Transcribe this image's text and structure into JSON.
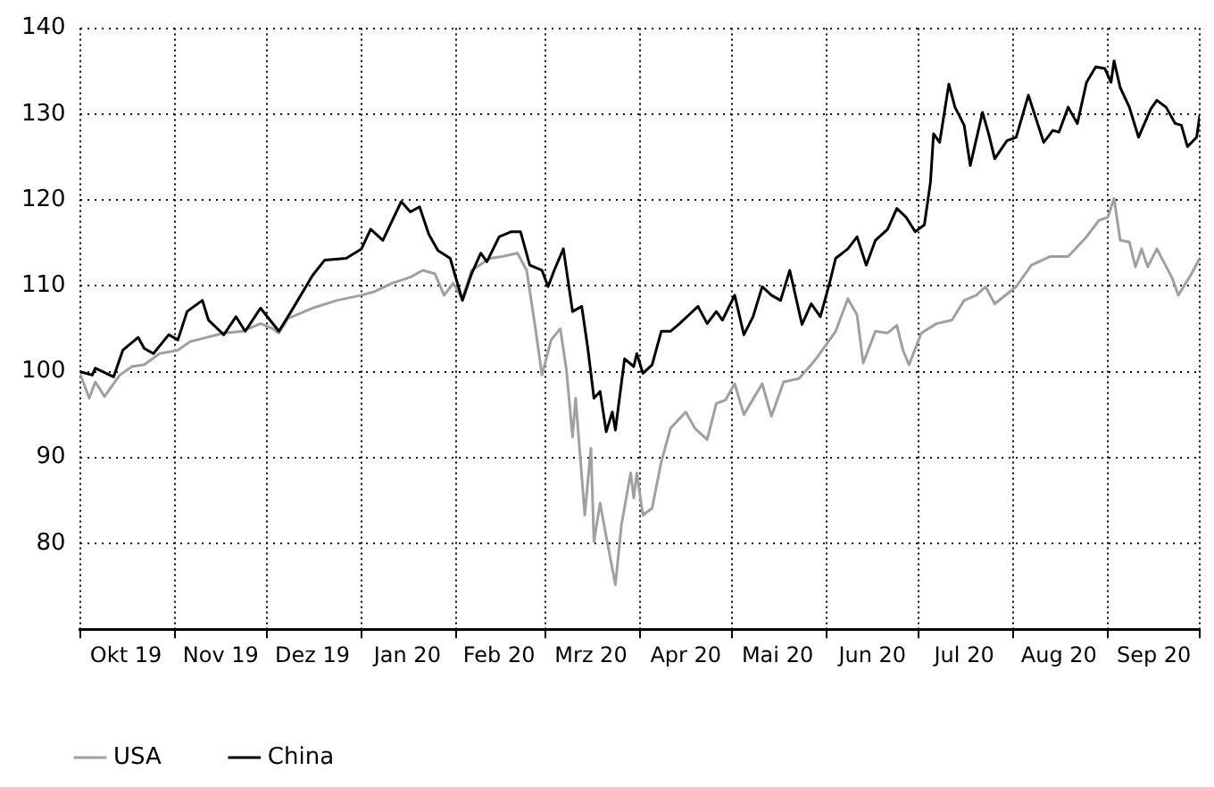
{
  "chart_data": {
    "type": "line",
    "xlim": [
      "2019-10-01",
      "2020-10-01"
    ],
    "xticks": [
      {
        "value": "2019-10-01",
        "label": null
      },
      {
        "value": "2019-10-16",
        "label": "Okt 19"
      },
      {
        "value": "2019-11-01",
        "label": null
      },
      {
        "value": "2019-11-16",
        "label": "Nov 19"
      },
      {
        "value": "2019-12-01",
        "label": null
      },
      {
        "value": "2019-12-16",
        "label": "Dez 19"
      },
      {
        "value": "2020-01-01",
        "label": null
      },
      {
        "value": "2020-01-16",
        "label": "Jan 20"
      },
      {
        "value": "2020-02-01",
        "label": null
      },
      {
        "value": "2020-02-15",
        "label": "Feb 20"
      },
      {
        "value": "2020-03-01",
        "label": null
      },
      {
        "value": "2020-03-16",
        "label": "Mrz 20"
      },
      {
        "value": "2020-04-01",
        "label": null
      },
      {
        "value": "2020-04-16",
        "label": "Apr 20"
      },
      {
        "value": "2020-05-01",
        "label": null
      },
      {
        "value": "2020-05-16",
        "label": "Mai 20"
      },
      {
        "value": "2020-06-01",
        "label": null
      },
      {
        "value": "2020-06-16",
        "label": "Jun 20"
      },
      {
        "value": "2020-07-01",
        "label": null
      },
      {
        "value": "2020-07-16",
        "label": "Jul 20"
      },
      {
        "value": "2020-08-01",
        "label": null
      },
      {
        "value": "2020-08-16",
        "label": "Aug 20"
      },
      {
        "value": "2020-09-01",
        "label": null
      },
      {
        "value": "2020-09-16",
        "label": "Sep 20"
      },
      {
        "value": "2020-10-01",
        "label": null
      }
    ],
    "ylim": [
      70,
      140
    ],
    "yticks": [
      {
        "value": 70,
        "label": null
      },
      80,
      90,
      100,
      110,
      120,
      130,
      140
    ],
    "grid": true,
    "legend": "bottom",
    "series": [
      {
        "name": "USA",
        "color": "#a0a0a0",
        "x": [
          "2019-10-01",
          "2019-10-04",
          "2019-10-06",
          "2019-10-09",
          "2019-10-14",
          "2019-10-18",
          "2019-10-22",
          "2019-10-27",
          "2019-11-02",
          "2019-11-06",
          "2019-11-17",
          "2019-11-23",
          "2019-11-29",
          "2019-12-03",
          "2019-12-05",
          "2019-12-08",
          "2019-12-16",
          "2019-12-24",
          "2020-01-01",
          "2020-01-05",
          "2020-01-11",
          "2020-01-17",
          "2020-01-21",
          "2020-01-25",
          "2020-01-28",
          "2020-01-31",
          "2020-02-03",
          "2020-02-06",
          "2020-02-12",
          "2020-02-16",
          "2020-02-21",
          "2020-02-24",
          "2020-02-27",
          "2020-02-29",
          "2020-03-03",
          "2020-03-06",
          "2020-03-08",
          "2020-03-10",
          "2020-03-11",
          "2020-03-14",
          "2020-03-16",
          "2020-03-17",
          "2020-03-19",
          "2020-03-21",
          "2020-03-24",
          "2020-03-26",
          "2020-03-29",
          "2020-03-30",
          "2020-03-31",
          "2020-04-02",
          "2020-04-05",
          "2020-04-08",
          "2020-04-11",
          "2020-04-16",
          "2020-04-19",
          "2020-04-23",
          "2020-04-26",
          "2020-04-29",
          "2020-05-02",
          "2020-05-05",
          "2020-05-11",
          "2020-05-14",
          "2020-05-18",
          "2020-05-23",
          "2020-05-27",
          "2020-05-29",
          "2020-06-04",
          "2020-06-08",
          "2020-06-11",
          "2020-06-13",
          "2020-06-17",
          "2020-06-21",
          "2020-06-24",
          "2020-06-26",
          "2020-06-28",
          "2020-07-02",
          "2020-07-07",
          "2020-07-12",
          "2020-07-16",
          "2020-07-20",
          "2020-07-23",
          "2020-07-26",
          "2020-08-02",
          "2020-08-07",
          "2020-08-13",
          "2020-08-19",
          "2020-08-25",
          "2020-08-29",
          "2020-09-01",
          "2020-09-03",
          "2020-09-05",
          "2020-09-08",
          "2020-09-10",
          "2020-09-12",
          "2020-09-14",
          "2020-09-17",
          "2020-09-22",
          "2020-09-24",
          "2020-09-28",
          "2020-10-01"
        ],
        "values": [
          99.8,
          96.9,
          98.8,
          97.1,
          99.6,
          100.6,
          100.8,
          102.1,
          102.5,
          103.5,
          104.5,
          104.7,
          105.6,
          105,
          104.5,
          106.2,
          107.4,
          108.3,
          108.9,
          109.3,
          110.3,
          111,
          111.8,
          111.4,
          108.9,
          110.3,
          108.5,
          111.8,
          113.2,
          113.4,
          113.8,
          111.8,
          104.7,
          99.6,
          103.7,
          105,
          100.2,
          92.4,
          96.9,
          83.3,
          91.1,
          80.2,
          84.7,
          80.8,
          75.2,
          82.2,
          88.2,
          85.3,
          88.2,
          83.3,
          84.1,
          89.5,
          93.4,
          95.3,
          93.4,
          92.1,
          96.3,
          96.7,
          98.6,
          95,
          98.6,
          94.8,
          98.8,
          99.2,
          100.8,
          101.7,
          104.7,
          108.5,
          106.6,
          101,
          104.7,
          104.5,
          105.4,
          102.5,
          100.8,
          104.5,
          105.6,
          106,
          108.3,
          108.9,
          109.9,
          107.9,
          109.9,
          112.4,
          113.4,
          113.4,
          115.7,
          117.6,
          118,
          120.2,
          115.3,
          115.1,
          112.2,
          114.3,
          112.2,
          114.3,
          110.9,
          108.9,
          111.2,
          113.2
        ]
      },
      {
        "name": "China",
        "color": "#000000",
        "x": [
          "2019-10-01",
          "2019-10-05",
          "2019-10-06",
          "2019-10-12",
          "2019-10-15",
          "2019-10-20",
          "2019-10-22",
          "2019-10-25",
          "2019-10-30",
          "2019-11-02",
          "2019-11-05",
          "2019-11-10",
          "2019-11-12",
          "2019-11-17",
          "2019-11-21",
          "2019-11-24",
          "2019-11-29",
          "2019-12-05",
          "2019-12-09",
          "2019-12-16",
          "2019-12-20",
          "2019-12-27",
          "2020-01-01",
          "2020-01-04",
          "2020-01-08",
          "2020-01-14",
          "2020-01-17",
          "2020-01-20",
          "2020-01-23",
          "2020-01-26",
          "2020-01-30",
          "2020-02-03",
          "2020-02-06",
          "2020-02-09",
          "2020-02-11",
          "2020-02-15",
          "2020-02-19",
          "2020-02-22",
          "2020-02-25",
          "2020-02-29",
          "2020-03-02",
          "2020-03-04",
          "2020-03-07",
          "2020-03-10",
          "2020-03-13",
          "2020-03-15",
          "2020-03-17",
          "2020-03-19",
          "2020-03-21",
          "2020-03-23",
          "2020-03-24",
          "2020-03-27",
          "2020-03-30",
          "2020-03-31",
          "2020-04-02",
          "2020-04-05",
          "2020-04-08",
          "2020-04-11",
          "2020-04-14",
          "2020-04-17",
          "2020-04-20",
          "2020-04-23",
          "2020-04-26",
          "2020-04-28",
          "2020-05-02",
          "2020-05-05",
          "2020-05-08",
          "2020-05-11",
          "2020-05-14",
          "2020-05-17",
          "2020-05-20",
          "2020-05-24",
          "2020-05-27",
          "2020-05-30",
          "2020-06-02",
          "2020-06-04",
          "2020-06-08",
          "2020-06-11",
          "2020-06-14",
          "2020-06-17",
          "2020-06-21",
          "2020-06-24",
          "2020-06-27",
          "2020-06-30",
          "2020-07-03",
          "2020-07-05",
          "2020-07-06",
          "2020-07-08",
          "2020-07-11",
          "2020-07-13",
          "2020-07-16",
          "2020-07-18",
          "2020-07-22",
          "2020-07-24",
          "2020-07-26",
          "2020-07-30",
          "2020-08-02",
          "2020-08-06",
          "2020-08-11",
          "2020-08-14",
          "2020-08-16",
          "2020-08-19",
          "2020-08-22",
          "2020-08-25",
          "2020-08-28",
          "2020-08-31",
          "2020-09-02",
          "2020-09-03",
          "2020-09-05",
          "2020-09-08",
          "2020-09-11",
          "2020-09-15",
          "2020-09-17",
          "2020-09-20",
          "2020-09-23",
          "2020-09-25",
          "2020-09-27",
          "2020-09-30",
          "2020-10-01"
        ],
        "values": [
          100,
          99.6,
          100.4,
          99.4,
          102.5,
          104,
          102.7,
          102.1,
          104.3,
          103.7,
          107,
          108.3,
          106,
          104.3,
          106.4,
          104.7,
          107.4,
          104.7,
          107,
          111.2,
          113,
          113.2,
          114.3,
          116.6,
          115.3,
          119.8,
          118.6,
          119.2,
          116,
          114.1,
          113.2,
          108.3,
          111.4,
          113.8,
          112.8,
          115.7,
          116.3,
          116.3,
          112.4,
          111.8,
          109.9,
          111.8,
          114.3,
          107,
          107.6,
          102.7,
          96.9,
          97.7,
          93,
          95.3,
          93.2,
          101.5,
          100.6,
          102.1,
          99.8,
          100.8,
          104.7,
          104.7,
          105.6,
          106.6,
          107.6,
          105.6,
          107,
          106,
          108.9,
          104.3,
          106.4,
          109.9,
          108.9,
          108.3,
          111.8,
          105.5,
          107.9,
          106.4,
          110.3,
          113.2,
          114.3,
          115.7,
          112.4,
          115.3,
          116.6,
          119,
          118,
          116.3,
          117.1,
          122.1,
          127.7,
          126.7,
          133.5,
          130.8,
          128.7,
          124,
          130.2,
          127.7,
          124.8,
          126.9,
          127.3,
          132.2,
          126.7,
          128.1,
          127.9,
          130.8,
          128.9,
          133.7,
          135.5,
          135.3,
          133.7,
          136.2,
          133.1,
          130.8,
          127.3,
          130.6,
          131.6,
          130.8,
          128.9,
          128.7,
          126.2,
          127.3,
          129.8
        ]
      }
    ]
  }
}
